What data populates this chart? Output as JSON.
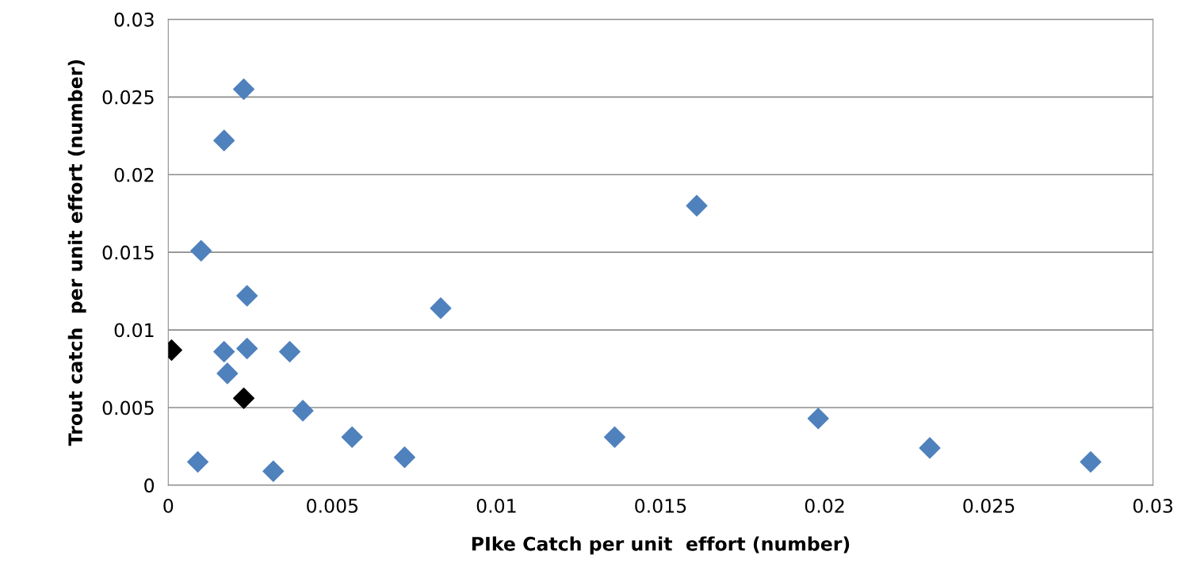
{
  "chart_data": {
    "type": "scatter",
    "xlabel": "PIke Catch per unit  effort (number)",
    "ylabel": "Trout catch  per unit effort (number)",
    "xlim": [
      0,
      0.03
    ],
    "xticks": [
      0,
      0.005,
      0.01,
      0.015,
      0.02,
      0.025,
      0.03
    ],
    "ylim": [
      0,
      0.03
    ],
    "yticks": [
      0,
      0.005,
      0.01,
      0.015,
      0.02,
      0.025,
      0.03
    ],
    "grid": "y",
    "marker": "diamond",
    "series": [
      {
        "color": "#4f81bd",
        "x": [
          0.0023,
          0.0017,
          0.001,
          0.0024,
          0.0017,
          0.0024,
          0.0018,
          0.0037,
          0.0041,
          0.0009,
          0.0032,
          0.0056,
          0.0072,
          0.0083,
          0.0136,
          0.0161,
          0.0198,
          0.0232,
          0.0281
        ],
        "values": [
          0.0255,
          0.0222,
          0.0151,
          0.0122,
          0.0086,
          0.0088,
          0.0072,
          0.0086,
          0.0048,
          0.0015,
          0.0009,
          0.0031,
          0.0018,
          0.0114,
          0.0031,
          0.018,
          0.0043,
          0.0024,
          0.0015
        ]
      },
      {
        "color": "#000000",
        "x": [
          0.0001,
          0.0023
        ],
        "values": [
          0.0087,
          0.0056
        ]
      }
    ]
  }
}
